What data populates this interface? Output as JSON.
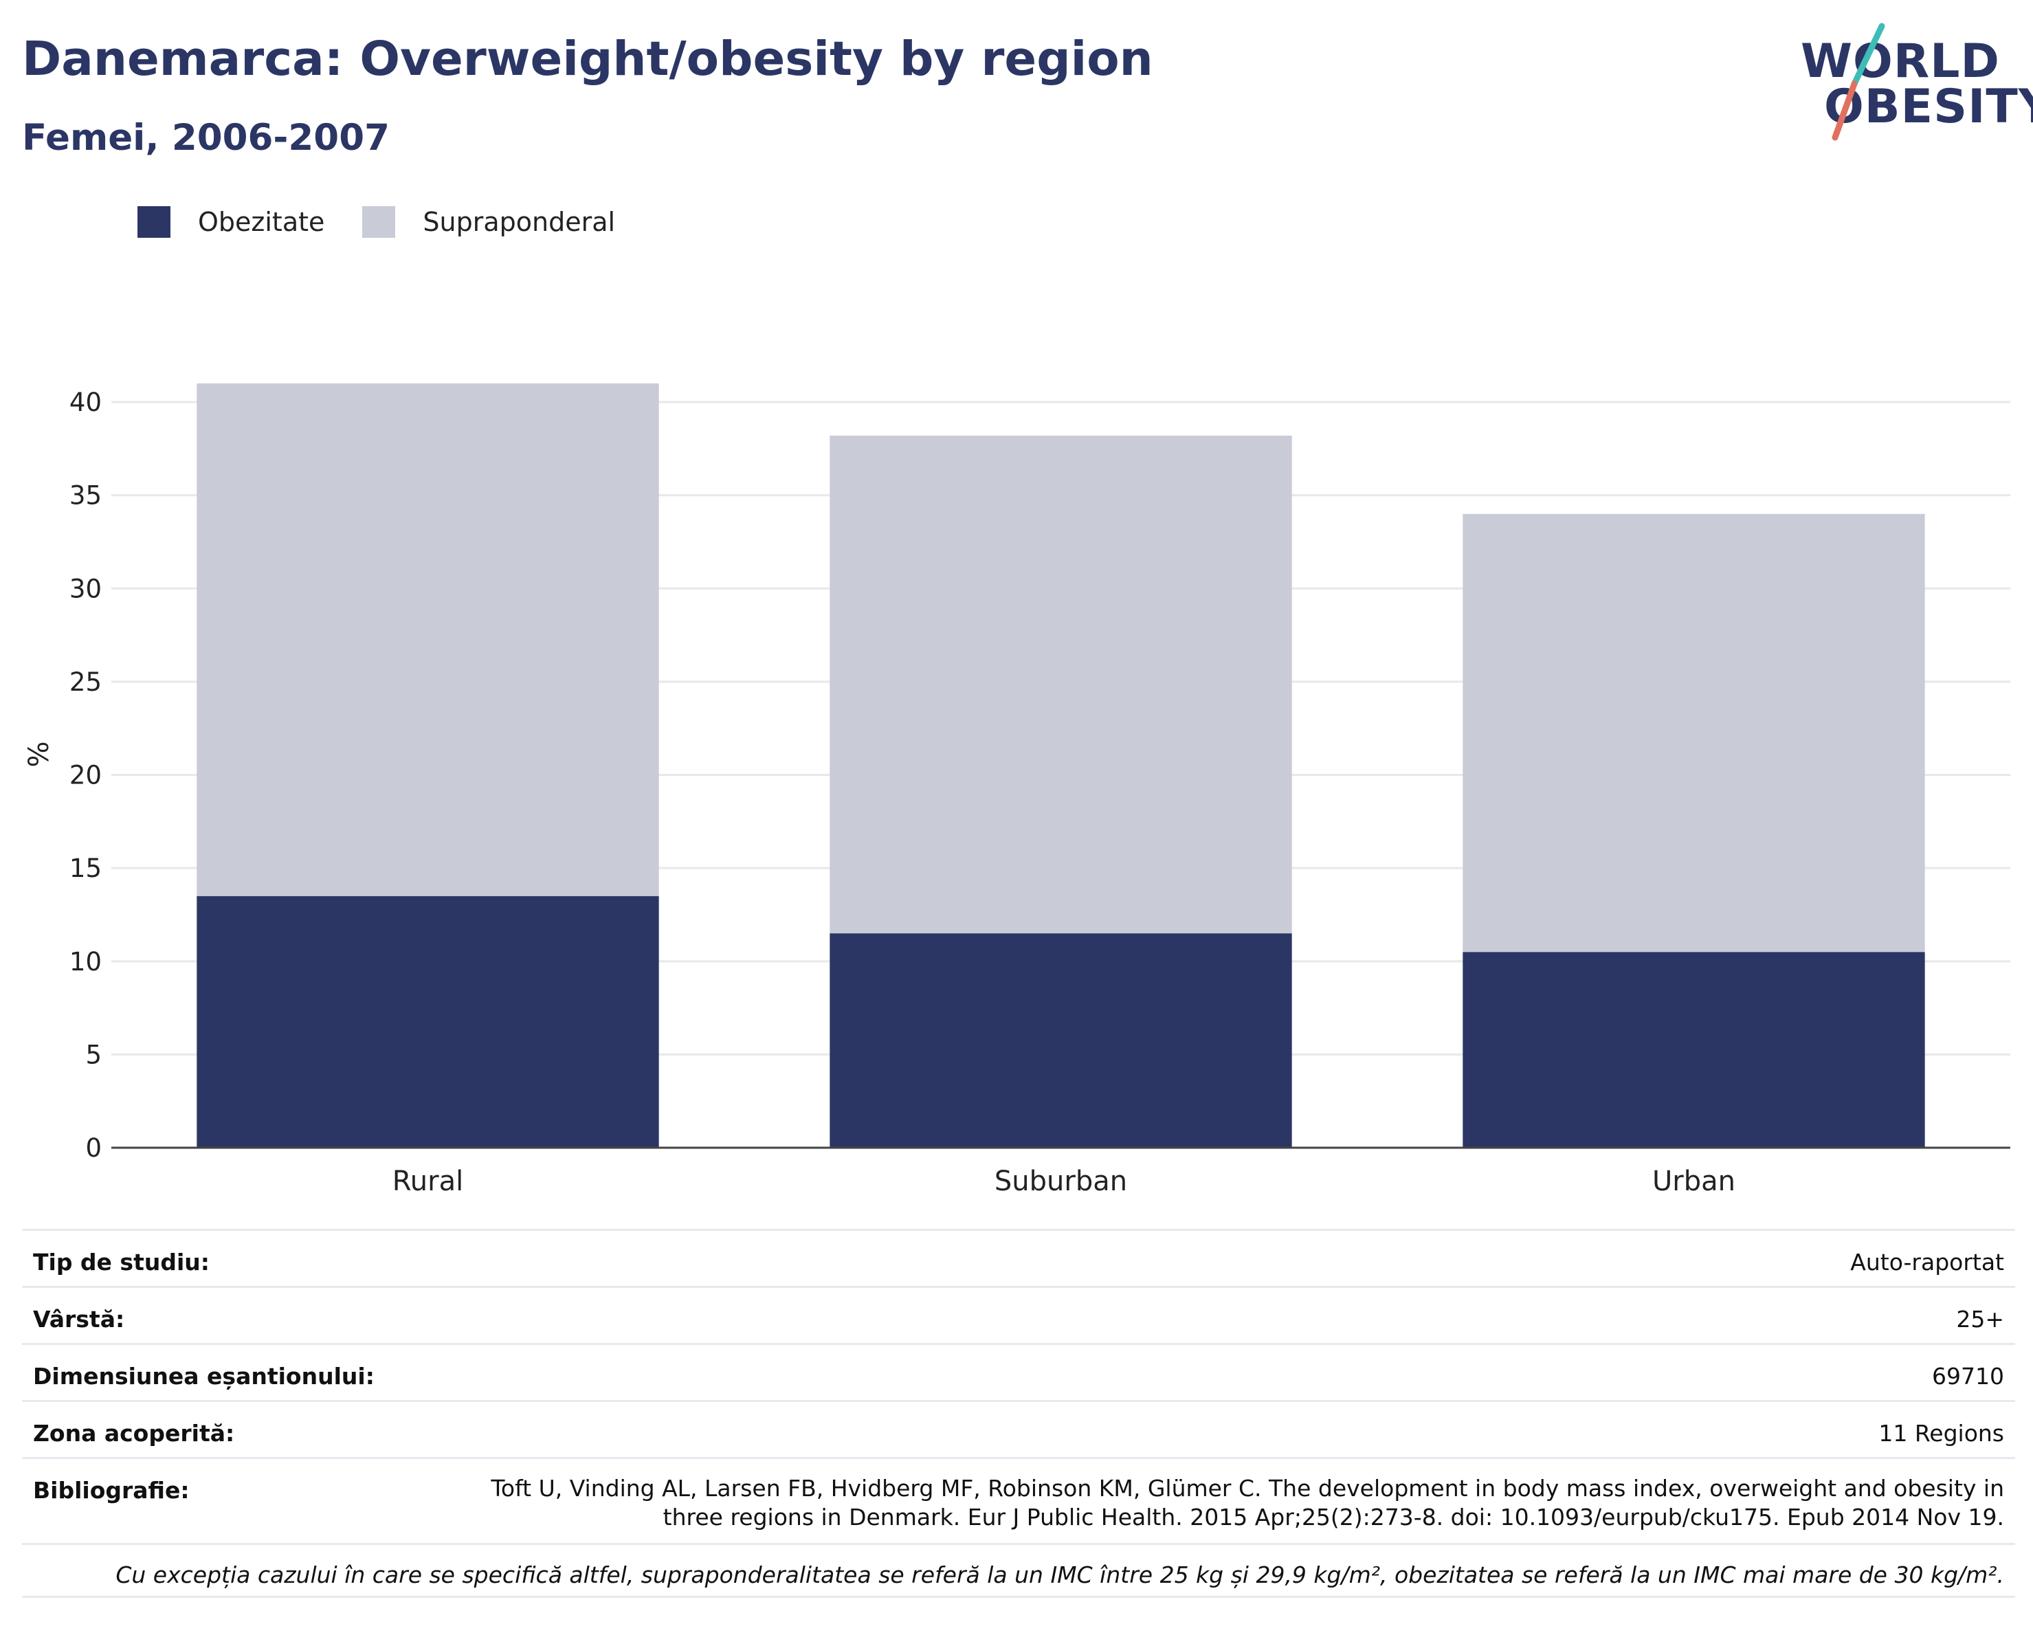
{
  "header": {
    "title": "Danemarca: Overweight/obesity by region",
    "subtitle": "Femei, 2006-2007"
  },
  "logo": {
    "line1": "WORLD",
    "line2": "OBESITY"
  },
  "colors": {
    "obesity": "#2b3665",
    "overweight": "#c9cbd6",
    "text_primary": "#2b3665",
    "logo_teal": "#3dbdb7",
    "logo_red": "#e0705f"
  },
  "chart_data": {
    "type": "bar",
    "stacked": true,
    "categories": [
      "Rural",
      "Suburban",
      "Urban"
    ],
    "series": [
      {
        "name": "Obezitate",
        "values": [
          13.5,
          11.5,
          10.5
        ]
      },
      {
        "name": "Supraponderal",
        "values": [
          27.5,
          26.7,
          23.5
        ]
      }
    ],
    "totals": [
      41.0,
      38.2,
      34.0
    ],
    "ylabel": "%",
    "ylim": [
      0,
      42
    ],
    "yticks": [
      0,
      5,
      10,
      15,
      20,
      25,
      30,
      35,
      40
    ],
    "grid": true,
    "legend_position": "top-left"
  },
  "info": {
    "study_type": {
      "label": "Tip de studiu:",
      "value": "Auto-raportat"
    },
    "age": {
      "label": "Vârstă:",
      "value": "25+"
    },
    "sample_size": {
      "label": "Dimensiunea eșantionului:",
      "value": "69710"
    },
    "area": {
      "label": "Zona acoperită:",
      "value": "11 Regions"
    },
    "bibliography": {
      "label": "Bibliografie:",
      "line1": "Toft U, Vinding AL, Larsen FB, Hvidberg MF, Robinson KM, Glümer C. The development in body mass index, overweight and obesity in",
      "line2": "three regions in Denmark. Eur J Public Health. 2015 Apr;25(2):273-8. doi: 10.1093/eurpub/cku175. Epub 2014 Nov 19."
    },
    "note": "Cu excepția cazului în care se specifică altfel, supraponderalitatea se referă la un IMC între 25 kg și 29,9 kg/m², obezitatea se referă la un IMC mai mare de 30 kg/m²."
  }
}
